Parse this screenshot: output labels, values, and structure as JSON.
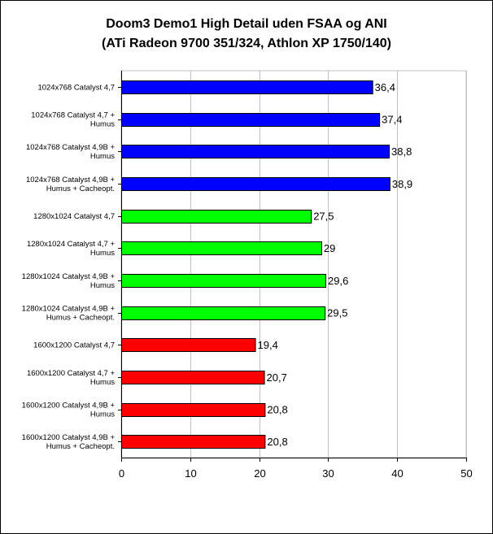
{
  "chart_data": {
    "type": "bar",
    "orientation": "horizontal",
    "title": "Doom3 Demo1 High Detail uden FSAA og ANI",
    "subtitle": "(ATi Radeon 9700 351/324, Athlon XP 1750/140)",
    "xlabel": "",
    "ylabel": "",
    "xlim": [
      0,
      50
    ],
    "ticks": [
      "0",
      "10",
      "20",
      "30",
      "40",
      "50"
    ],
    "grid": "vertical",
    "legend": "none",
    "categories": [
      [
        "1024x768 Catalyst 4,7"
      ],
      [
        "1024x768 Catalyst 4,7 +",
        "Humus"
      ],
      [
        "1024x768 Catalyst 4,9B +",
        "Humus"
      ],
      [
        "1024x768 Catalyst 4,9B +",
        "Humus + Cacheopt."
      ],
      [
        "1280x1024 Catalyst 4,7"
      ],
      [
        "1280x1024 Catalyst 4,7 +",
        "Humus"
      ],
      [
        "1280x1024 Catalyst 4,9B +",
        "Humus"
      ],
      [
        "1280x1024 Catalyst 4,9B +",
        "Humus + Cacheopt."
      ],
      [
        "1600x1200 Catalyst 4,7"
      ],
      [
        "1600x1200 Catalyst 4,7 +",
        "Humus"
      ],
      [
        "1600x1200 Catalyst 4,9B +",
        "Humus"
      ],
      [
        "1600x1200 Catalyst 4,9B +",
        "Humus + Cacheopt."
      ]
    ],
    "values": [
      36.4,
      37.4,
      38.8,
      38.9,
      27.5,
      29,
      29.6,
      29.5,
      19.4,
      20.7,
      20.8,
      20.8
    ],
    "value_labels": [
      "36,4",
      "37,4",
      "38,8",
      "38,9",
      "27,5",
      "29",
      "29,6",
      "29,5",
      "19,4",
      "20,7",
      "20,8",
      "20,8"
    ],
    "bar_colors": [
      "#0000ff",
      "#0000ff",
      "#0000ff",
      "#0000ff",
      "#00ff00",
      "#00ff00",
      "#00ff00",
      "#00ff00",
      "#ff0000",
      "#ff0000",
      "#ff0000",
      "#ff0000"
    ],
    "plot_background": "#ffffff",
    "grid_color": "#c0c0c0"
  }
}
